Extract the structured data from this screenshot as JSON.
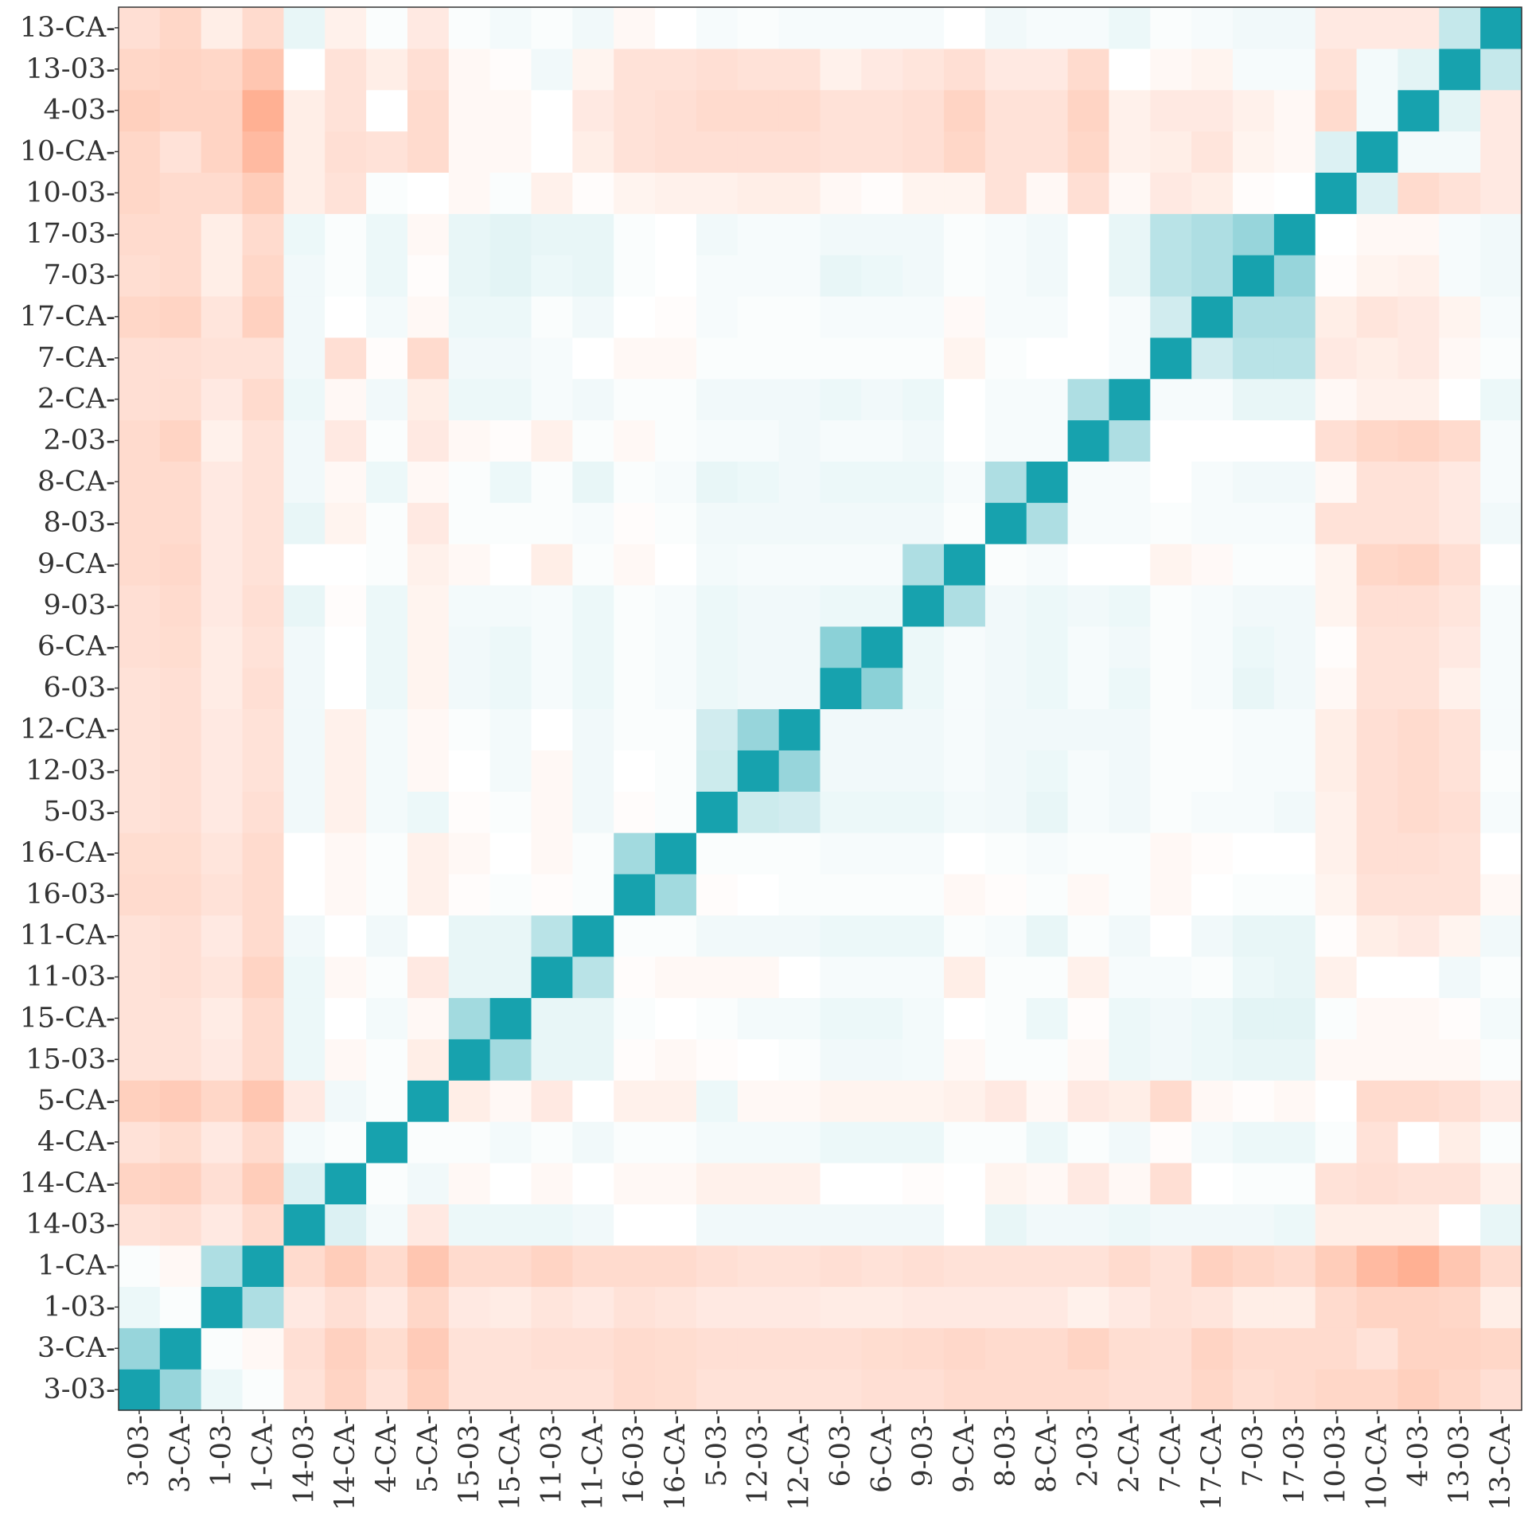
{
  "chart_data": {
    "type": "heatmap",
    "title": "",
    "xlabel": "",
    "ylabel": "",
    "labels": [
      "3-03",
      "3-CA",
      "1-03",
      "1-CA",
      "14-03",
      "14-CA",
      "4-CA",
      "5-CA",
      "15-03",
      "15-CA",
      "11-03",
      "11-CA",
      "16-03",
      "16-CA",
      "5-03",
      "12-03",
      "12-CA",
      "6-03",
      "6-CA",
      "9-03",
      "9-CA",
      "8-03",
      "8-CA",
      "2-03",
      "2-CA",
      "7-CA",
      "17-CA",
      "7-03",
      "17-03",
      "10-03",
      "10-CA",
      "4-03",
      "13-03",
      "13-CA"
    ],
    "tick_suffix": "-",
    "color_scale": {
      "low": "#ff8c62",
      "mid": "#ffffff",
      "high": "#17a2ae",
      "range": [
        -0.8,
        1
      ]
    },
    "grid": false,
    "legend": "none",
    "values": [
      [
        1,
        0.45,
        0.08,
        0.02,
        -0.2,
        -0.3,
        -0.2,
        -0.33,
        -0.2,
        -0.2,
        -0.2,
        -0.2,
        -0.25,
        -0.24,
        -0.2,
        -0.2,
        -0.2,
        -0.2,
        -0.22,
        -0.22,
        -0.25,
        -0.25,
        -0.25,
        -0.25,
        -0.22,
        -0.22,
        -0.28,
        -0.23,
        -0.25,
        -0.28,
        -0.28,
        -0.33,
        -0.28,
        -0.22
      ],
      [
        0.45,
        1,
        0.02,
        -0.05,
        -0.22,
        -0.32,
        -0.24,
        -0.36,
        -0.2,
        -0.2,
        -0.22,
        -0.22,
        -0.25,
        -0.24,
        -0.22,
        -0.22,
        -0.22,
        -0.22,
        -0.24,
        -0.25,
        -0.27,
        -0.25,
        -0.25,
        -0.3,
        -0.23,
        -0.22,
        -0.3,
        -0.25,
        -0.25,
        -0.25,
        -0.2,
        -0.3,
        -0.3,
        -0.28
      ],
      [
        0.08,
        0.02,
        1,
        0.35,
        -0.15,
        -0.22,
        -0.15,
        -0.28,
        -0.15,
        -0.13,
        -0.18,
        -0.15,
        -0.2,
        -0.18,
        -0.15,
        -0.15,
        -0.15,
        -0.13,
        -0.13,
        -0.15,
        -0.15,
        -0.15,
        -0.15,
        -0.1,
        -0.15,
        -0.2,
        -0.18,
        -0.12,
        -0.12,
        -0.25,
        -0.3,
        -0.3,
        -0.28,
        -0.12
      ],
      [
        0.02,
        -0.05,
        0.35,
        1,
        -0.25,
        -0.35,
        -0.25,
        -0.4,
        -0.25,
        -0.25,
        -0.3,
        -0.25,
        -0.25,
        -0.25,
        -0.22,
        -0.2,
        -0.2,
        -0.22,
        -0.2,
        -0.22,
        -0.2,
        -0.2,
        -0.2,
        -0.2,
        -0.25,
        -0.2,
        -0.32,
        -0.28,
        -0.25,
        -0.35,
        -0.48,
        -0.55,
        -0.4,
        -0.25
      ],
      [
        -0.2,
        -0.22,
        -0.15,
        -0.25,
        1,
        0.15,
        0.05,
        -0.15,
        0.08,
        0.08,
        0.08,
        0.06,
        0.0,
        0.0,
        0.06,
        0.06,
        0.06,
        0.06,
        0.06,
        0.06,
        0.0,
        0.1,
        0.06,
        0.06,
        0.08,
        0.06,
        0.06,
        0.06,
        0.08,
        -0.12,
        -0.12,
        -0.12,
        0.0,
        0.1
      ],
      [
        -0.3,
        -0.32,
        -0.22,
        -0.35,
        0.15,
        1,
        0.02,
        0.06,
        -0.05,
        0.0,
        -0.05,
        0.0,
        -0.05,
        -0.05,
        -0.1,
        -0.1,
        -0.1,
        0.0,
        0.0,
        -0.02,
        0.0,
        -0.08,
        -0.05,
        -0.15,
        -0.05,
        -0.22,
        0.0,
        0.02,
        0.02,
        -0.2,
        -0.22,
        -0.2,
        -0.2,
        -0.1
      ],
      [
        -0.2,
        -0.24,
        -0.15,
        -0.25,
        0.05,
        0.02,
        1,
        0.02,
        0.02,
        0.05,
        0.02,
        0.06,
        0.02,
        0.02,
        0.05,
        0.05,
        0.05,
        0.08,
        0.08,
        0.08,
        0.02,
        0.02,
        0.08,
        0.02,
        0.06,
        -0.02,
        0.05,
        0.08,
        0.08,
        0.02,
        -0.2,
        0.0,
        -0.12,
        0.02
      ],
      [
        -0.33,
        -0.36,
        -0.28,
        -0.4,
        -0.15,
        0.06,
        0.02,
        1,
        -0.12,
        -0.05,
        -0.15,
        0.0,
        -0.1,
        -0.1,
        0.08,
        -0.05,
        -0.05,
        -0.08,
        -0.08,
        -0.08,
        -0.1,
        -0.15,
        -0.05,
        -0.15,
        -0.12,
        -0.25,
        -0.05,
        -0.02,
        -0.05,
        0.0,
        -0.25,
        -0.25,
        -0.22,
        -0.15
      ],
      [
        -0.2,
        -0.2,
        -0.15,
        -0.25,
        0.08,
        -0.05,
        0.02,
        -0.12,
        1,
        0.4,
        0.1,
        0.1,
        -0.02,
        -0.05,
        -0.02,
        0.0,
        0.02,
        0.06,
        0.06,
        0.05,
        -0.05,
        0.02,
        0.02,
        -0.05,
        0.08,
        0.06,
        0.08,
        0.1,
        0.1,
        -0.05,
        -0.05,
        -0.05,
        -0.05,
        0.02
      ],
      [
        -0.2,
        -0.2,
        -0.13,
        -0.25,
        0.08,
        0.0,
        0.05,
        -0.05,
        0.4,
        1,
        0.1,
        0.1,
        0.02,
        0.0,
        0.02,
        0.05,
        0.05,
        0.08,
        0.08,
        0.05,
        0.0,
        0.02,
        0.08,
        -0.02,
        0.08,
        0.06,
        0.08,
        0.12,
        0.12,
        0.02,
        -0.05,
        -0.05,
        -0.02,
        0.05
      ],
      [
        -0.2,
        -0.22,
        -0.18,
        -0.3,
        0.08,
        -0.05,
        0.02,
        -0.15,
        0.1,
        0.1,
        1,
        0.3,
        -0.02,
        -0.05,
        -0.05,
        -0.05,
        0.0,
        0.04,
        0.04,
        0.04,
        -0.12,
        0.02,
        0.02,
        -0.1,
        0.04,
        0.04,
        0.02,
        0.08,
        0.1,
        -0.1,
        0.0,
        0.0,
        0.06,
        0.02
      ],
      [
        -0.2,
        -0.22,
        -0.15,
        -0.25,
        0.06,
        0.0,
        0.06,
        0.0,
        0.1,
        0.1,
        0.3,
        1,
        0.02,
        0.02,
        0.06,
        0.06,
        0.06,
        0.08,
        0.08,
        0.08,
        0.02,
        0.04,
        0.1,
        0.02,
        0.06,
        0.0,
        0.06,
        0.1,
        0.1,
        -0.02,
        -0.12,
        -0.15,
        -0.08,
        0.06
      ],
      [
        -0.25,
        -0.25,
        -0.2,
        -0.25,
        0.0,
        -0.05,
        0.02,
        -0.1,
        -0.02,
        0.02,
        -0.02,
        0.02,
        1,
        0.4,
        -0.02,
        0.0,
        0.02,
        0.02,
        0.02,
        0.02,
        -0.05,
        -0.02,
        0.02,
        -0.05,
        0.02,
        -0.05,
        0.0,
        0.02,
        0.02,
        -0.08,
        -0.2,
        -0.2,
        -0.2,
        -0.05
      ],
      [
        -0.24,
        -0.24,
        -0.18,
        -0.25,
        0.0,
        -0.05,
        0.02,
        -0.1,
        -0.05,
        0.0,
        -0.05,
        0.02,
        0.4,
        1,
        0.02,
        0.02,
        0.02,
        0.04,
        0.04,
        0.04,
        0.0,
        0.02,
        0.04,
        0.02,
        0.02,
        -0.05,
        -0.02,
        0.0,
        0.0,
        -0.1,
        -0.22,
        -0.22,
        -0.2,
        0.0
      ],
      [
        -0.2,
        -0.22,
        -0.15,
        -0.22,
        0.06,
        -0.1,
        0.05,
        0.08,
        -0.02,
        0.02,
        -0.05,
        0.06,
        -0.02,
        0.02,
        1,
        0.22,
        0.2,
        0.08,
        0.08,
        0.08,
        0.05,
        0.06,
        0.1,
        0.04,
        0.06,
        0.02,
        0.04,
        0.04,
        0.06,
        -0.1,
        -0.22,
        -0.25,
        -0.22,
        0.04
      ],
      [
        -0.2,
        -0.22,
        -0.15,
        -0.2,
        0.06,
        -0.1,
        0.05,
        -0.05,
        0.0,
        0.05,
        -0.05,
        0.06,
        0.0,
        0.02,
        0.22,
        1,
        0.45,
        0.06,
        0.06,
        0.06,
        0.04,
        0.06,
        0.08,
        0.04,
        0.06,
        0.02,
        0.02,
        0.04,
        0.04,
        -0.12,
        -0.22,
        -0.25,
        -0.2,
        0.02
      ],
      [
        -0.2,
        -0.22,
        -0.15,
        -0.2,
        0.06,
        -0.1,
        0.05,
        -0.05,
        0.02,
        0.05,
        0.0,
        0.06,
        0.02,
        0.02,
        0.2,
        0.45,
        1,
        0.06,
        0.06,
        0.06,
        0.04,
        0.06,
        0.06,
        0.06,
        0.06,
        0.02,
        0.02,
        0.04,
        0.04,
        -0.12,
        -0.22,
        -0.25,
        -0.2,
        0.04
      ],
      [
        -0.2,
        -0.22,
        -0.13,
        -0.22,
        0.06,
        0.0,
        0.08,
        -0.08,
        0.06,
        0.08,
        0.04,
        0.08,
        0.02,
        0.04,
        0.08,
        0.06,
        0.06,
        1,
        0.5,
        0.08,
        0.04,
        0.06,
        0.08,
        0.04,
        0.08,
        0.02,
        0.04,
        0.1,
        0.06,
        -0.05,
        -0.2,
        -0.2,
        -0.1,
        0.04
      ],
      [
        -0.22,
        -0.24,
        -0.13,
        -0.2,
        0.06,
        0.0,
        0.08,
        -0.08,
        0.06,
        0.08,
        0.04,
        0.08,
        0.02,
        0.04,
        0.08,
        0.06,
        0.06,
        0.5,
        1,
        0.08,
        0.04,
        0.06,
        0.08,
        0.04,
        0.06,
        0.02,
        0.04,
        0.08,
        0.06,
        -0.02,
        -0.2,
        -0.2,
        -0.15,
        0.04
      ],
      [
        -0.22,
        -0.25,
        -0.15,
        -0.22,
        0.1,
        -0.02,
        0.08,
        -0.08,
        0.05,
        0.05,
        0.04,
        0.08,
        0.02,
        0.04,
        0.08,
        0.06,
        0.06,
        0.08,
        0.08,
        1,
        0.35,
        0.06,
        0.08,
        0.06,
        0.08,
        0.02,
        0.04,
        0.06,
        0.06,
        -0.08,
        -0.22,
        -0.22,
        -0.18,
        0.04
      ],
      [
        -0.25,
        -0.27,
        -0.15,
        -0.2,
        0.0,
        0.0,
        0.02,
        -0.1,
        -0.05,
        0.0,
        -0.12,
        0.02,
        -0.05,
        0.0,
        0.05,
        0.04,
        0.04,
        0.04,
        0.04,
        0.35,
        1,
        0.02,
        0.04,
        0.0,
        0.0,
        -0.08,
        -0.04,
        0.02,
        0.02,
        -0.08,
        -0.28,
        -0.3,
        -0.22,
        0.0
      ],
      [
        -0.25,
        -0.25,
        -0.15,
        -0.2,
        0.1,
        -0.08,
        0.02,
        -0.15,
        0.02,
        0.02,
        0.02,
        0.04,
        -0.02,
        0.02,
        0.06,
        0.06,
        0.06,
        0.06,
        0.06,
        0.06,
        0.02,
        1,
        0.35,
        0.04,
        0.04,
        0.02,
        0.04,
        0.04,
        0.04,
        -0.2,
        -0.2,
        -0.2,
        -0.15,
        0.06
      ],
      [
        -0.25,
        -0.25,
        -0.15,
        -0.2,
        0.06,
        -0.05,
        0.08,
        -0.05,
        0.02,
        0.08,
        0.02,
        0.1,
        0.02,
        0.04,
        0.1,
        0.08,
        0.06,
        0.08,
        0.08,
        0.08,
        0.04,
        0.35,
        1,
        0.04,
        0.04,
        0.0,
        0.04,
        0.06,
        0.06,
        -0.05,
        -0.2,
        -0.2,
        -0.15,
        0.04
      ],
      [
        -0.25,
        -0.3,
        -0.1,
        -0.2,
        0.06,
        -0.15,
        0.02,
        -0.15,
        -0.05,
        -0.02,
        -0.1,
        0.02,
        -0.05,
        0.02,
        0.04,
        0.04,
        0.06,
        0.04,
        0.04,
        0.06,
        0.0,
        0.04,
        0.04,
        1,
        0.35,
        0.0,
        0.0,
        0.0,
        0.0,
        -0.22,
        -0.28,
        -0.3,
        -0.25,
        0.04
      ],
      [
        -0.22,
        -0.23,
        -0.15,
        -0.25,
        0.08,
        -0.05,
        0.06,
        -0.12,
        0.08,
        0.08,
        0.04,
        0.06,
        0.02,
        0.02,
        0.06,
        0.06,
        0.06,
        0.08,
        0.06,
        0.08,
        0.0,
        0.04,
        0.04,
        0.35,
        1,
        0.04,
        0.04,
        0.1,
        0.1,
        -0.05,
        -0.1,
        -0.1,
        0.0,
        0.08
      ],
      [
        -0.22,
        -0.22,
        -0.2,
        -0.2,
        0.06,
        -0.22,
        -0.02,
        -0.25,
        0.06,
        0.06,
        0.04,
        0.0,
        -0.05,
        -0.05,
        0.02,
        0.02,
        0.02,
        0.02,
        0.02,
        0.02,
        -0.08,
        0.02,
        0.0,
        0.0,
        0.04,
        1,
        0.2,
        0.3,
        0.3,
        -0.15,
        -0.12,
        -0.15,
        -0.05,
        0.02
      ],
      [
        -0.28,
        -0.3,
        -0.18,
        -0.32,
        0.06,
        0.0,
        0.05,
        -0.05,
        0.08,
        0.08,
        0.02,
        0.06,
        0.0,
        -0.02,
        0.04,
        0.02,
        0.02,
        0.04,
        0.04,
        0.04,
        -0.04,
        0.04,
        0.04,
        0.0,
        0.04,
        0.2,
        1,
        0.35,
        0.35,
        -0.12,
        -0.18,
        -0.15,
        -0.08,
        0.04
      ],
      [
        -0.23,
        -0.25,
        -0.12,
        -0.28,
        0.06,
        0.02,
        0.08,
        -0.02,
        0.1,
        0.12,
        0.08,
        0.1,
        0.02,
        0.0,
        0.04,
        0.04,
        0.04,
        0.1,
        0.08,
        0.06,
        0.02,
        0.04,
        0.06,
        0.0,
        0.1,
        0.3,
        0.35,
        1,
        0.45,
        -0.02,
        -0.08,
        -0.1,
        0.04,
        0.06
      ],
      [
        -0.25,
        -0.25,
        -0.12,
        -0.25,
        0.08,
        0.02,
        0.08,
        -0.05,
        0.1,
        0.12,
        0.1,
        0.1,
        0.02,
        0.0,
        0.06,
        0.04,
        0.04,
        0.06,
        0.06,
        0.06,
        0.02,
        0.04,
        0.06,
        0.0,
        0.1,
        0.3,
        0.35,
        0.45,
        1,
        0.0,
        -0.05,
        -0.05,
        0.04,
        0.06
      ],
      [
        -0.28,
        -0.25,
        -0.25,
        -0.35,
        -0.12,
        -0.2,
        0.02,
        0.0,
        -0.05,
        0.02,
        -0.1,
        -0.02,
        -0.08,
        -0.1,
        -0.1,
        -0.12,
        -0.12,
        -0.05,
        -0.02,
        -0.08,
        -0.08,
        -0.2,
        -0.05,
        -0.22,
        -0.05,
        -0.15,
        -0.12,
        -0.02,
        0.0,
        1,
        0.15,
        -0.25,
        -0.2,
        -0.15
      ],
      [
        -0.28,
        -0.2,
        -0.3,
        -0.48,
        -0.12,
        -0.22,
        -0.2,
        -0.25,
        -0.05,
        -0.05,
        0.0,
        -0.12,
        -0.2,
        -0.22,
        -0.22,
        -0.22,
        -0.22,
        -0.2,
        -0.2,
        -0.22,
        -0.28,
        -0.2,
        -0.2,
        -0.28,
        -0.1,
        -0.12,
        -0.18,
        -0.08,
        -0.05,
        0.15,
        1,
        0.05,
        0.05,
        -0.15
      ],
      [
        -0.33,
        -0.3,
        -0.3,
        -0.55,
        -0.12,
        -0.2,
        0.0,
        -0.25,
        -0.05,
        -0.05,
        0.0,
        -0.15,
        -0.2,
        -0.22,
        -0.25,
        -0.25,
        -0.25,
        -0.2,
        -0.2,
        -0.22,
        -0.3,
        -0.2,
        -0.2,
        -0.3,
        -0.1,
        -0.15,
        -0.15,
        -0.1,
        -0.05,
        -0.25,
        0.05,
        1,
        0.12,
        -0.15
      ],
      [
        -0.28,
        -0.3,
        -0.28,
        -0.4,
        0.0,
        -0.2,
        -0.12,
        -0.22,
        -0.05,
        -0.02,
        0.06,
        -0.08,
        -0.2,
        -0.2,
        -0.22,
        -0.2,
        -0.2,
        -0.1,
        -0.15,
        -0.18,
        -0.22,
        -0.15,
        -0.15,
        -0.25,
        0.0,
        -0.05,
        -0.08,
        0.04,
        0.04,
        -0.2,
        0.05,
        0.12,
        1,
        0.25
      ],
      [
        -0.22,
        -0.28,
        -0.12,
        -0.25,
        0.1,
        -0.1,
        0.02,
        -0.15,
        0.02,
        0.05,
        0.02,
        0.06,
        -0.05,
        0.0,
        0.04,
        0.02,
        0.04,
        0.04,
        0.04,
        0.04,
        0.0,
        0.06,
        0.04,
        0.04,
        0.08,
        0.02,
        0.04,
        0.06,
        0.06,
        -0.15,
        -0.15,
        -0.15,
        0.25,
        1
      ]
    ]
  }
}
